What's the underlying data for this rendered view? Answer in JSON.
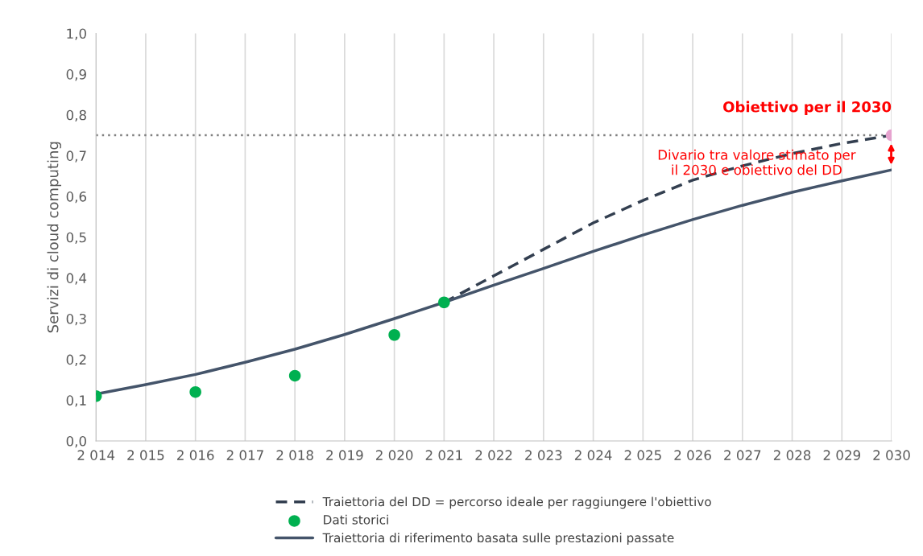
{
  "chart_data": {
    "type": "line",
    "ylabel": "Servizi di cloud computing",
    "series": [
      {
        "name": "Traiettoria del DD = percorso ideale per raggiungere l'obiettivo",
        "line_style": "dashed",
        "color": "#333f50",
        "x": [
          2021,
          2022,
          2023,
          2024,
          2025,
          2026,
          2027,
          2028,
          2029,
          2030
        ],
        "values": [
          0.34,
          0.405,
          0.47,
          0.535,
          0.59,
          0.64,
          0.675,
          0.705,
          0.73,
          0.75
        ]
      },
      {
        "name": "Dati storici",
        "type": "scatter",
        "marker": "circle",
        "color": "#00b050",
        "x": [
          2014,
          2016,
          2018,
          2020,
          2021
        ],
        "values": [
          0.11,
          0.12,
          0.16,
          0.26,
          0.34
        ]
      },
      {
        "name": "Traiettoria di riferimento basata sulle prestazioni passate",
        "line_style": "solid",
        "color": "#44546a",
        "x": [
          2014,
          2015,
          2016,
          2017,
          2018,
          2019,
          2020,
          2021,
          2022,
          2023,
          2024,
          2025,
          2026,
          2027,
          2028,
          2029,
          2030
        ],
        "values": [
          0.115,
          0.138,
          0.163,
          0.193,
          0.225,
          0.261,
          0.3,
          0.34,
          0.382,
          0.423,
          0.465,
          0.505,
          0.543,
          0.578,
          0.61,
          0.638,
          0.665
        ]
      },
      {
        "type": "scatter",
        "marker": "circle",
        "color": "#e6a3cf",
        "x": [
          2030
        ],
        "values": [
          0.75
        ]
      }
    ],
    "ref_lines": [
      {
        "axis": "y",
        "value": 0.75,
        "color": "#808080",
        "line_style": "dotted"
      }
    ],
    "annotations": [
      {
        "text": "Obiettivo per il 2030",
        "x": 2030,
        "y": 0.75
      },
      "Divario tra valore stimato per\nil 2030 e obiettivo del DD"
    ],
    "xlim": [
      2014,
      2030
    ],
    "xticks": [
      {
        "value": 2014,
        "label": "2 014"
      },
      {
        "value": 2015,
        "label": "2 015"
      },
      {
        "value": 2016,
        "label": "2 016"
      },
      {
        "value": 2017,
        "label": "2 017"
      },
      {
        "value": 2018,
        "label": "2 018"
      },
      {
        "value": 2019,
        "label": "2 019"
      },
      {
        "value": 2020,
        "label": "2 020"
      },
      {
        "value": 2021,
        "label": "2 021"
      },
      {
        "value": 2022,
        "label": "2 022"
      },
      {
        "value": 2023,
        "label": "2 023"
      },
      {
        "value": 2024,
        "label": "2 024"
      },
      {
        "value": 2025,
        "label": "2 025"
      },
      {
        "value": 2026,
        "label": "2 026"
      },
      {
        "value": 2027,
        "label": "2 027"
      },
      {
        "value": 2028,
        "label": "2 028"
      },
      {
        "value": 2029,
        "label": "2 029"
      },
      {
        "value": 2030,
        "label": "2 030"
      }
    ],
    "ylim": [
      0,
      1
    ],
    "yticks": [
      {
        "value": 0,
        "label": "0,0"
      },
      {
        "value": 0.1,
        "label": "0,1"
      },
      {
        "value": 0.2,
        "label": "0,2"
      },
      {
        "value": 0.3,
        "label": "0,3"
      },
      {
        "value": 0.4,
        "label": "0,4"
      },
      {
        "value": 0.5,
        "label": "0,5"
      },
      {
        "value": 0.6,
        "label": "0,6"
      },
      {
        "value": 0.7,
        "label": "0,7"
      },
      {
        "value": 0.8,
        "label": "0,8"
      },
      {
        "value": 0.9,
        "label": "0,9"
      },
      {
        "value": 1,
        "label": "1,0"
      }
    ],
    "grid": "x",
    "legend": "bottom"
  }
}
